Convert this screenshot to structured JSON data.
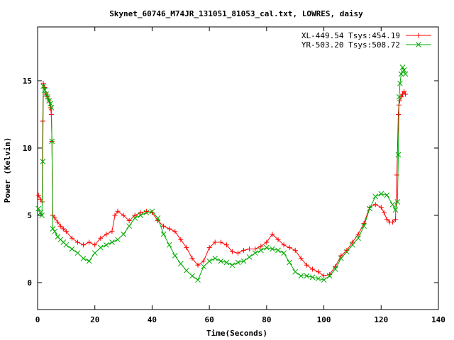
{
  "chart_data": {
    "type": "line",
    "title": "Skynet_60746_M74JR_131051_81053_cal.txt, LOWRES, daisy",
    "xlabel": "Time(Seconds)",
    "ylabel": "Power (Kelvin)",
    "xlim": [
      0,
      140
    ],
    "ylim": [
      -2,
      19
    ],
    "xticks": [
      "0",
      "20",
      "40",
      "60",
      "80",
      "100",
      "120",
      "140"
    ],
    "yticks": [
      "0",
      "5",
      "10",
      "15"
    ],
    "xtick_values": [
      0,
      20,
      40,
      60,
      80,
      100,
      120,
      140
    ],
    "ytick_values": [
      0,
      5,
      10,
      15
    ],
    "grid": false,
    "legend_position": "top-right",
    "series": [
      {
        "name": "XL-449.54 Tsys:454.19",
        "color": "#ff0000",
        "marker": "plus",
        "x": [
          0.3,
          1.0,
          1.6,
          1.8,
          2.0,
          2.5,
          3.0,
          3.5,
          4.0,
          4.5,
          4.8,
          5.0,
          5.3,
          6,
          7,
          8,
          9,
          10,
          12,
          14,
          16,
          18,
          20,
          22,
          24,
          26,
          27,
          28,
          30,
          32,
          34,
          36,
          38,
          40,
          42,
          44,
          46,
          48,
          50,
          52,
          54,
          56,
          58,
          60,
          62,
          64,
          66,
          68,
          70,
          72,
          74,
          76,
          78,
          80,
          82,
          84,
          86,
          88,
          90,
          92,
          94,
          96,
          98,
          100,
          102,
          104,
          106,
          108,
          110,
          112,
          114,
          116,
          118,
          120,
          121,
          122,
          123,
          124,
          125,
          125.5,
          126.0,
          126.2,
          126.5,
          127,
          127.5,
          128,
          128.5
        ],
        "y": [
          6.5,
          6.2,
          6.0,
          12.0,
          14.8,
          14.5,
          14.0,
          13.8,
          13.5,
          13.0,
          12.5,
          10.5,
          5.0,
          4.8,
          4.5,
          4.2,
          4.0,
          3.8,
          3.3,
          3.0,
          2.8,
          3.0,
          2.8,
          3.3,
          3.6,
          3.8,
          5.0,
          5.3,
          5.0,
          4.6,
          5.0,
          5.2,
          5.3,
          5.2,
          4.6,
          4.2,
          4.0,
          3.8,
          3.2,
          2.6,
          1.8,
          1.3,
          1.6,
          2.6,
          3.0,
          3.0,
          2.8,
          2.3,
          2.2,
          2.4,
          2.5,
          2.5,
          2.7,
          3.0,
          3.6,
          3.2,
          2.8,
          2.6,
          2.4,
          1.8,
          1.3,
          1.0,
          0.8,
          0.5,
          0.6,
          1.2,
          2.0,
          2.4,
          3.0,
          3.6,
          4.4,
          5.6,
          5.8,
          5.6,
          5.2,
          4.7,
          4.5,
          4.5,
          4.7,
          8.0,
          12.5,
          13.2,
          13.5,
          13.8,
          14.0,
          14.2,
          14.0
        ]
      },
      {
        "name": "YR-503.20 Tsys:508.72",
        "color": "#00aa00",
        "marker": "cross",
        "x": [
          0.3,
          1.0,
          1.5,
          1.8,
          2.0,
          2.5,
          3.0,
          3.5,
          4.0,
          4.5,
          4.8,
          5.0,
          5.3,
          6,
          7,
          8,
          9,
          10,
          12,
          14,
          16,
          18,
          20,
          22,
          24,
          26,
          28,
          30,
          32,
          34,
          36,
          38,
          40,
          42,
          44,
          46,
          48,
          50,
          52,
          54,
          56,
          58,
          60,
          62,
          64,
          66,
          68,
          70,
          72,
          74,
          76,
          78,
          80,
          82,
          84,
          86,
          88,
          90,
          92,
          94,
          96,
          98,
          100,
          102,
          104,
          106,
          108,
          110,
          112,
          114,
          116,
          118,
          120,
          122,
          124,
          125,
          125.7,
          126.0,
          126.3,
          126.6,
          127,
          127.5,
          128,
          128.5
        ],
        "y": [
          5.5,
          5.2,
          5.0,
          9.0,
          14.6,
          14.3,
          14.0,
          13.8,
          13.5,
          13.3,
          13.0,
          10.5,
          4.0,
          3.8,
          3.4,
          3.2,
          3.0,
          2.8,
          2.5,
          2.2,
          1.8,
          1.6,
          2.2,
          2.6,
          2.8,
          3.0,
          3.2,
          3.6,
          4.2,
          4.8,
          5.0,
          5.2,
          5.3,
          4.8,
          3.6,
          2.8,
          2.0,
          1.4,
          0.9,
          0.5,
          0.2,
          1.2,
          1.6,
          1.8,
          1.6,
          1.5,
          1.3,
          1.5,
          1.6,
          1.9,
          2.2,
          2.4,
          2.6,
          2.5,
          2.4,
          2.2,
          1.5,
          0.8,
          0.5,
          0.5,
          0.4,
          0.3,
          0.2,
          0.5,
          1.0,
          1.8,
          2.3,
          2.8,
          3.3,
          4.2,
          5.5,
          6.4,
          6.6,
          6.5,
          5.8,
          5.4,
          6.0,
          9.5,
          13.8,
          14.8,
          15.5,
          16.0,
          15.8,
          15.5
        ]
      }
    ]
  }
}
